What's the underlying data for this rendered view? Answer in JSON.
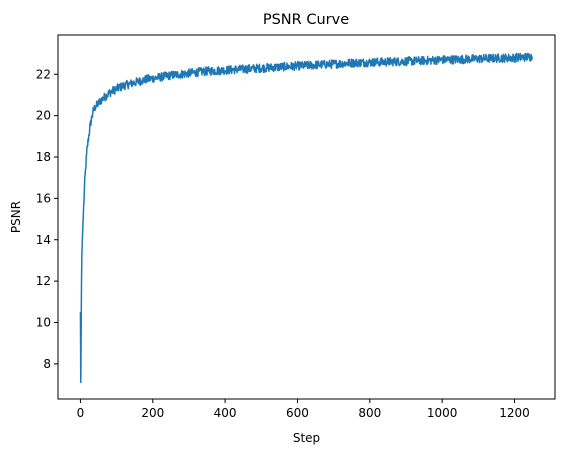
{
  "chart_data": {
    "type": "line",
    "title": "PSNR Curve",
    "xlabel": "Step",
    "ylabel": "PSNR",
    "xlim": [
      -62,
      1312
    ],
    "ylim": [
      6.3,
      23.9
    ],
    "xticks": [
      0,
      200,
      400,
      600,
      800,
      1000,
      1200
    ],
    "yticks": [
      8,
      10,
      12,
      14,
      16,
      18,
      20,
      22
    ],
    "grid": false,
    "legend": "none",
    "series": [
      {
        "color": "#1f77b4",
        "x": [
          0,
          1,
          2,
          3,
          4,
          6,
          8,
          10,
          12,
          15,
          18,
          22,
          26,
          30,
          35,
          40,
          50,
          60,
          70,
          80,
          100,
          120,
          150,
          180,
          200,
          250,
          300,
          350,
          400,
          450,
          500,
          550,
          600,
          650,
          700,
          750,
          800,
          850,
          900,
          950,
          1000,
          1050,
          1100,
          1150,
          1200,
          1249
        ],
        "y": [
          10.5,
          7.1,
          9.5,
          12.0,
          13.3,
          14.3,
          15.2,
          16.0,
          16.8,
          17.6,
          18.3,
          18.9,
          19.4,
          19.8,
          20.2,
          20.4,
          20.6,
          20.8,
          20.95,
          21.1,
          21.3,
          21.45,
          21.6,
          21.75,
          21.8,
          21.95,
          22.05,
          22.15,
          22.2,
          22.25,
          22.3,
          22.35,
          22.4,
          22.45,
          22.5,
          22.55,
          22.58,
          22.6,
          22.63,
          22.66,
          22.7,
          22.72,
          22.75,
          22.78,
          22.8,
          22.85
        ]
      }
    ]
  }
}
